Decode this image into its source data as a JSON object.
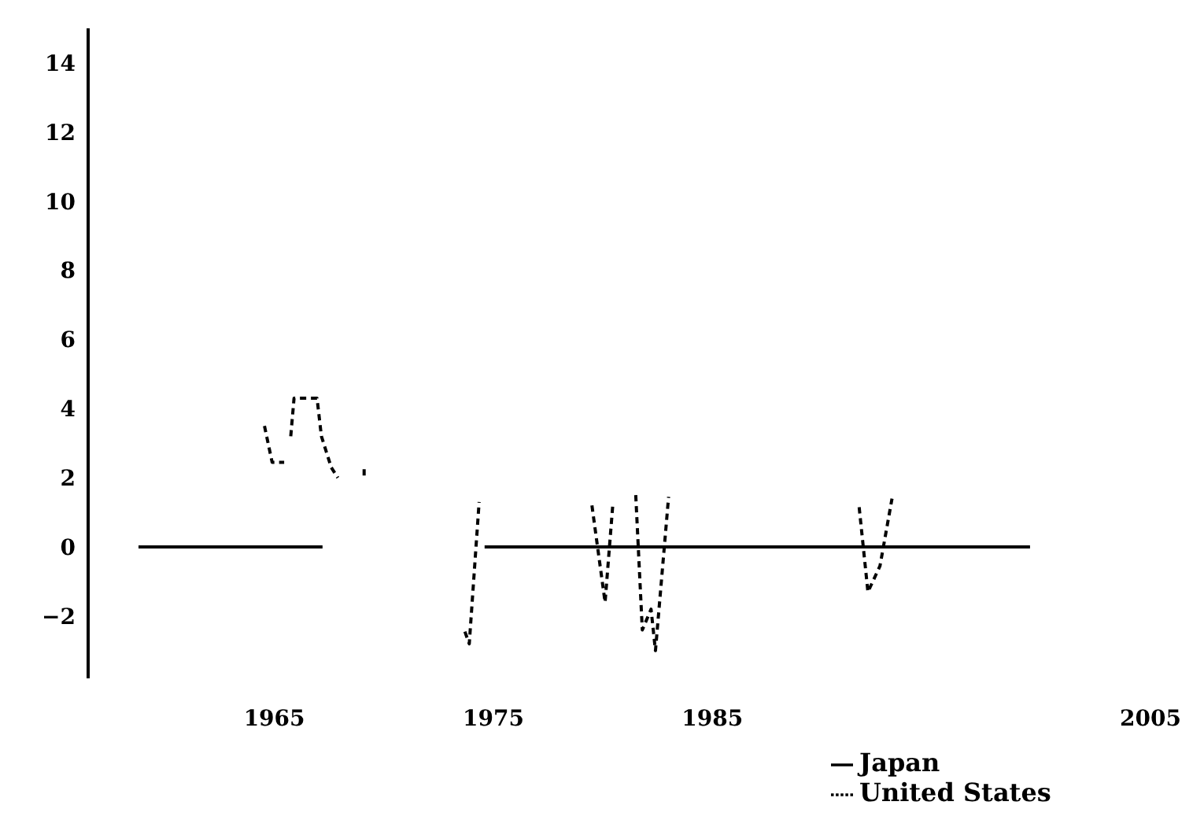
{
  "chart_data": {
    "type": "line",
    "xlim": [
      1956.5,
      2005
    ],
    "xticks": [
      1965,
      1975,
      1985,
      2005
    ],
    "ylim": [
      -3.8,
      15
    ],
    "yticks": [
      -2,
      0,
      2,
      4,
      6,
      8,
      10,
      12,
      14
    ],
    "grid": false,
    "legend": "bottom right",
    "marker": "none",
    "series": [
      {
        "name": "Japan",
        "color": "#000000",
        "line_style": "solid",
        "x": [
          1958.8,
          1967.2,
          1967.3,
          1974.6,
          1999.5
        ],
        "values": [
          0,
          0,
          null,
          0,
          0
        ]
      },
      {
        "name": "United States",
        "color": "#000000",
        "line_style": "dashed",
        "x": [
          1964.55,
          1964.9,
          1965.45,
          1965.6,
          1965.75,
          1965.9,
          1966.95,
          1967.15,
          1967.6,
          1967.9,
          1968.5,
          1969.1,
          1969.1,
          1969.2,
          1973.7,
          1973.9,
          1974.35,
          1974.5,
          1979.5,
          1980.1,
          1980.45,
          1980.6,
          1981.5,
          1981.8,
          1982.2,
          1982.4,
          1983.0,
          1983.2,
          1991.7,
          1992.1,
          1992.65,
          1993.2
        ],
        "values": [
          3.5,
          2.45,
          2.45,
          null,
          3.2,
          4.3,
          4.3,
          3.2,
          2.3,
          2.0,
          null,
          2.25,
          1.95,
          null,
          -2.45,
          -2.8,
          1.3,
          null,
          1.2,
          -1.6,
          1.2,
          null,
          1.5,
          -2.4,
          -1.8,
          -3.0,
          1.45,
          null,
          1.15,
          -1.3,
          -0.55,
          1.4
        ]
      }
    ]
  }
}
